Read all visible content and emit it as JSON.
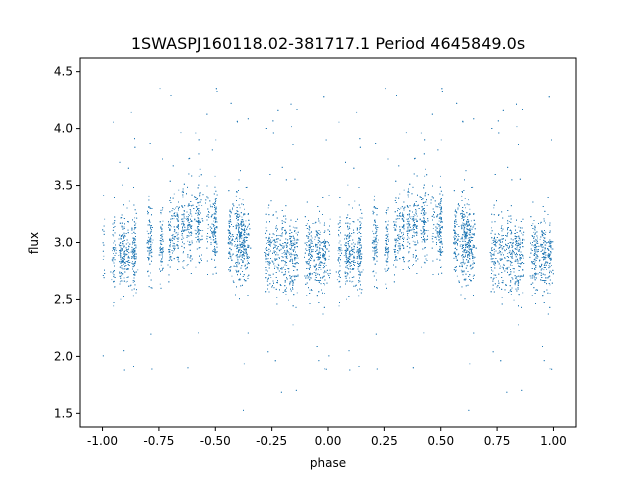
{
  "chart_data": {
    "type": "scatter",
    "title": "1SWASPJ160118.02-381717.1 Period 4645849.0s",
    "xlabel": "phase",
    "ylabel": "flux",
    "xlim": [
      -1.1,
      1.1
    ],
    "ylim": [
      1.38,
      4.62
    ],
    "xticks": [
      "-1.00",
      "-0.75",
      "-0.50",
      "-0.25",
      "0.00",
      "0.25",
      "0.50",
      "0.75",
      "1.00"
    ],
    "yticks": [
      "1.5",
      "2.0",
      "2.5",
      "3.0",
      "3.5",
      "4.0",
      "4.5"
    ],
    "grid": false,
    "legend": "none",
    "series": [
      {
        "color": "#1f77b4",
        "marker": "dot",
        "description_points": "dense phase-folded light curve; flux clustered 2.5–3.5, peaks near phase ±0.55 (~3.2) and troughs near phase 0.0 and ±1.0 (~2.85), with sparse outliers from 1.5 to 4.5",
        "profile": [
          {
            "phase": -1.0,
            "flux": 2.88
          },
          {
            "phase": -0.9,
            "flux": 2.92
          },
          {
            "phase": -0.75,
            "flux": 3.0
          },
          {
            "phase": -0.6,
            "flux": 3.18
          },
          {
            "phase": -0.5,
            "flux": 3.12
          },
          {
            "phase": -0.4,
            "flux": 3.02
          },
          {
            "phase": -0.25,
            "flux": 2.9
          },
          {
            "phase": -0.1,
            "flux": 2.9
          },
          {
            "phase": 0.0,
            "flux": 2.88
          },
          {
            "phase": 0.1,
            "flux": 2.92
          },
          {
            "phase": 0.25,
            "flux": 3.0
          },
          {
            "phase": 0.4,
            "flux": 3.18
          },
          {
            "phase": 0.5,
            "flux": 3.12
          },
          {
            "phase": 0.6,
            "flux": 3.02
          },
          {
            "phase": 0.75,
            "flux": 2.9
          },
          {
            "phase": 0.9,
            "flux": 2.9
          },
          {
            "phase": 1.0,
            "flux": 2.88
          }
        ]
      }
    ]
  }
}
